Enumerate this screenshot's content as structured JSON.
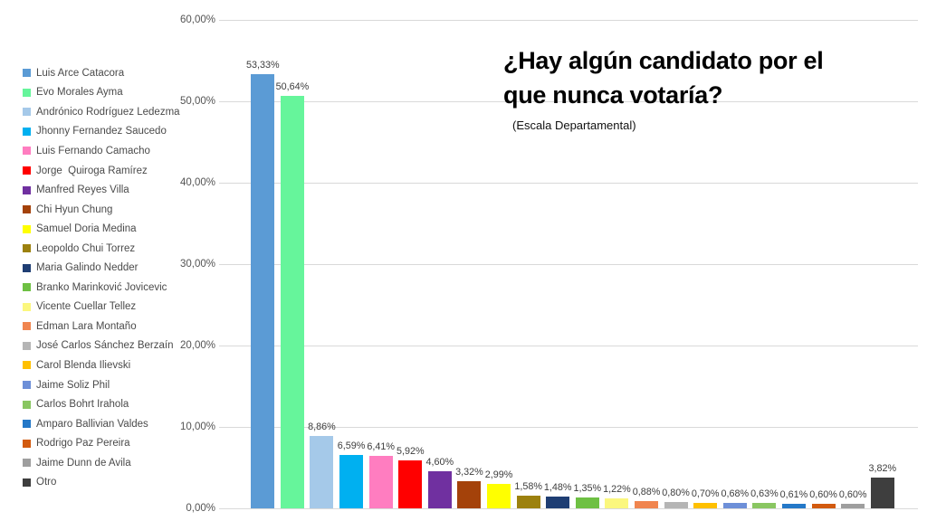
{
  "slide": {
    "title_lines": [
      "¿Hay algún candidato por el",
      "que nunca votaría?"
    ],
    "subtitle": "(Escala Departamental)"
  },
  "chart_data": {
    "type": "bar",
    "title": "¿Hay algún candidato por el que nunca votaría?",
    "subtitle": "(Escala Departamental)",
    "categories": [
      "Luis Arce Catacora",
      "Evo Morales Ayma",
      "Andrónico Rodríguez Ledezma",
      "Jhonny Fernandez Saucedo",
      "Luis Fernando Camacho",
      "Jorge  Quiroga Ramírez",
      "Manfred Reyes Villa",
      "Chi Hyun Chung",
      "Samuel Doria Medina",
      "Leopoldo Chui Torrez",
      "Maria Galindo Nedder",
      "Branko Marinković Jovicevic",
      "Vicente Cuellar Tellez",
      "Edman Lara Montaño",
      "José Carlos Sánchez Berzaín",
      "Carol Blenda Ilievski",
      "Jaime Soliz Phil",
      "Carlos Bohrt Irahola",
      "Amparo Ballivian Valdes",
      "Rodrigo Paz Pereira",
      "Jaime Dunn de Avila",
      "Otro"
    ],
    "values": [
      53.33,
      50.64,
      8.86,
      6.59,
      6.41,
      5.92,
      4.6,
      3.32,
      2.99,
      1.58,
      1.48,
      1.35,
      1.22,
      0.88,
      0.8,
      0.7,
      0.68,
      0.63,
      0.61,
      0.6,
      0.6,
      3.82
    ],
    "value_labels": [
      "53,33%",
      "50,64%",
      "8,86%",
      "6,59%",
      "6,41%",
      "5,92%",
      "4,60%",
      "3,32%",
      "2,99%",
      "1,58%",
      "1,48%",
      "1,35%",
      "1,22%",
      "0,88%",
      "0,80%",
      "0,70%",
      "0,68%",
      "0,63%",
      "0,61%",
      "0,60%",
      "0,60%",
      "3,82%"
    ],
    "colors": [
      "#5B9BD5",
      "#66F59B",
      "#A5C9E9",
      "#00B0F0",
      "#FF7DC0",
      "#FF0000",
      "#7030A0",
      "#A4420A",
      "#FFFF00",
      "#9C810E",
      "#1F3E73",
      "#6EC043",
      "#FBF77E",
      "#F0854F",
      "#B5B5B5",
      "#FFC000",
      "#6D8FD8",
      "#89C661",
      "#2478C8",
      "#D25A0F",
      "#9E9E9E",
      "#3E3E3E"
    ],
    "ytick_labels": [
      "0,00%",
      "10,00%",
      "20,00%",
      "30,00%",
      "40,00%",
      "50,00%",
      "60,00%"
    ],
    "ylim": [
      0,
      60
    ],
    "grid": true,
    "legend_position": "left"
  }
}
